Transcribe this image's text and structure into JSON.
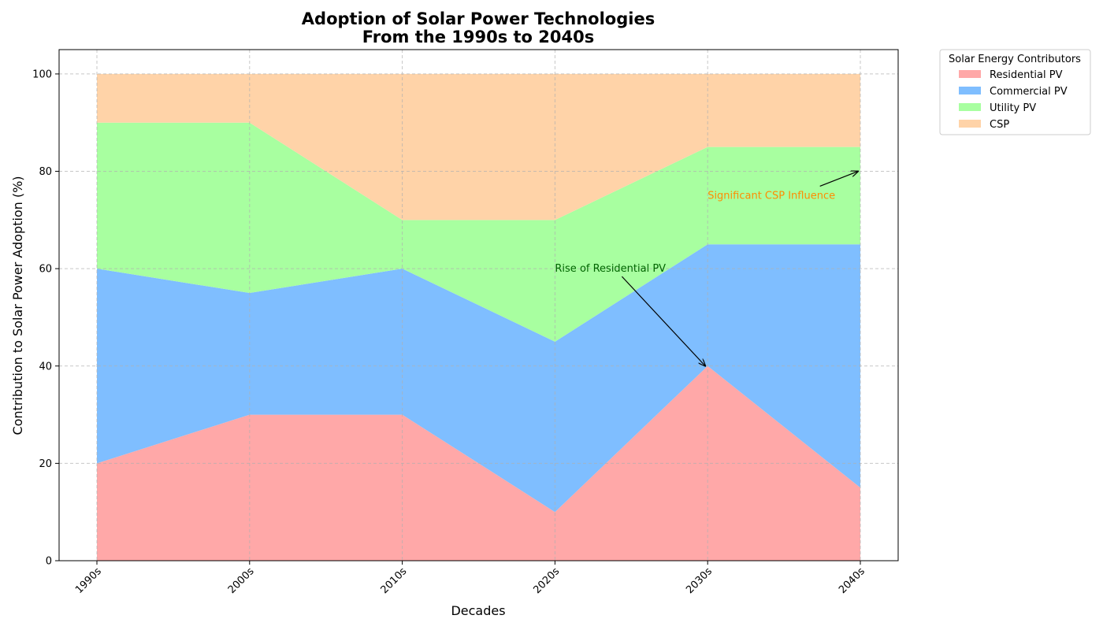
{
  "chart_data": {
    "type": "area",
    "stacked": true,
    "title_line1": "Adoption of Solar Power Technologies",
    "title_line2": "From the 1990s to 2040s",
    "xlabel": "Decades",
    "ylabel": "Contribution to Solar Power Adoption (%)",
    "categories": [
      "1990s",
      "2000s",
      "2010s",
      "2020s",
      "2030s",
      "2040s"
    ],
    "ylim": [
      0,
      105
    ],
    "yticks": [
      0,
      20,
      40,
      60,
      80,
      100
    ],
    "grid": true,
    "legend_title": "Solar Energy Contributors",
    "legend_position": "outside top-right",
    "series": [
      {
        "name": "Residential PV",
        "color": "#ffa8a8",
        "values": [
          20,
          30,
          30,
          10,
          40,
          15
        ]
      },
      {
        "name": "Commercial PV",
        "color": "#7fbeff",
        "values": [
          40,
          25,
          30,
          35,
          25,
          50
        ]
      },
      {
        "name": "Utility PV",
        "color": "#a8ffa0",
        "values": [
          30,
          35,
          10,
          25,
          20,
          20
        ]
      },
      {
        "name": "CSP",
        "color": "#ffd3a8",
        "values": [
          10,
          10,
          30,
          30,
          15,
          15
        ]
      }
    ],
    "annotations": [
      {
        "text": "Rise of Residential PV",
        "color": "#006400",
        "text_x": "2020s",
        "text_y": 60,
        "text_anchor": "left",
        "point_x": "2030s",
        "point_y": 40
      },
      {
        "text": "Significant CSP Influence",
        "color": "#ff8c00",
        "text_x": "2030s",
        "text_y": 75,
        "text_anchor": "left",
        "point_x": "2040s",
        "point_y": 80
      }
    ]
  }
}
